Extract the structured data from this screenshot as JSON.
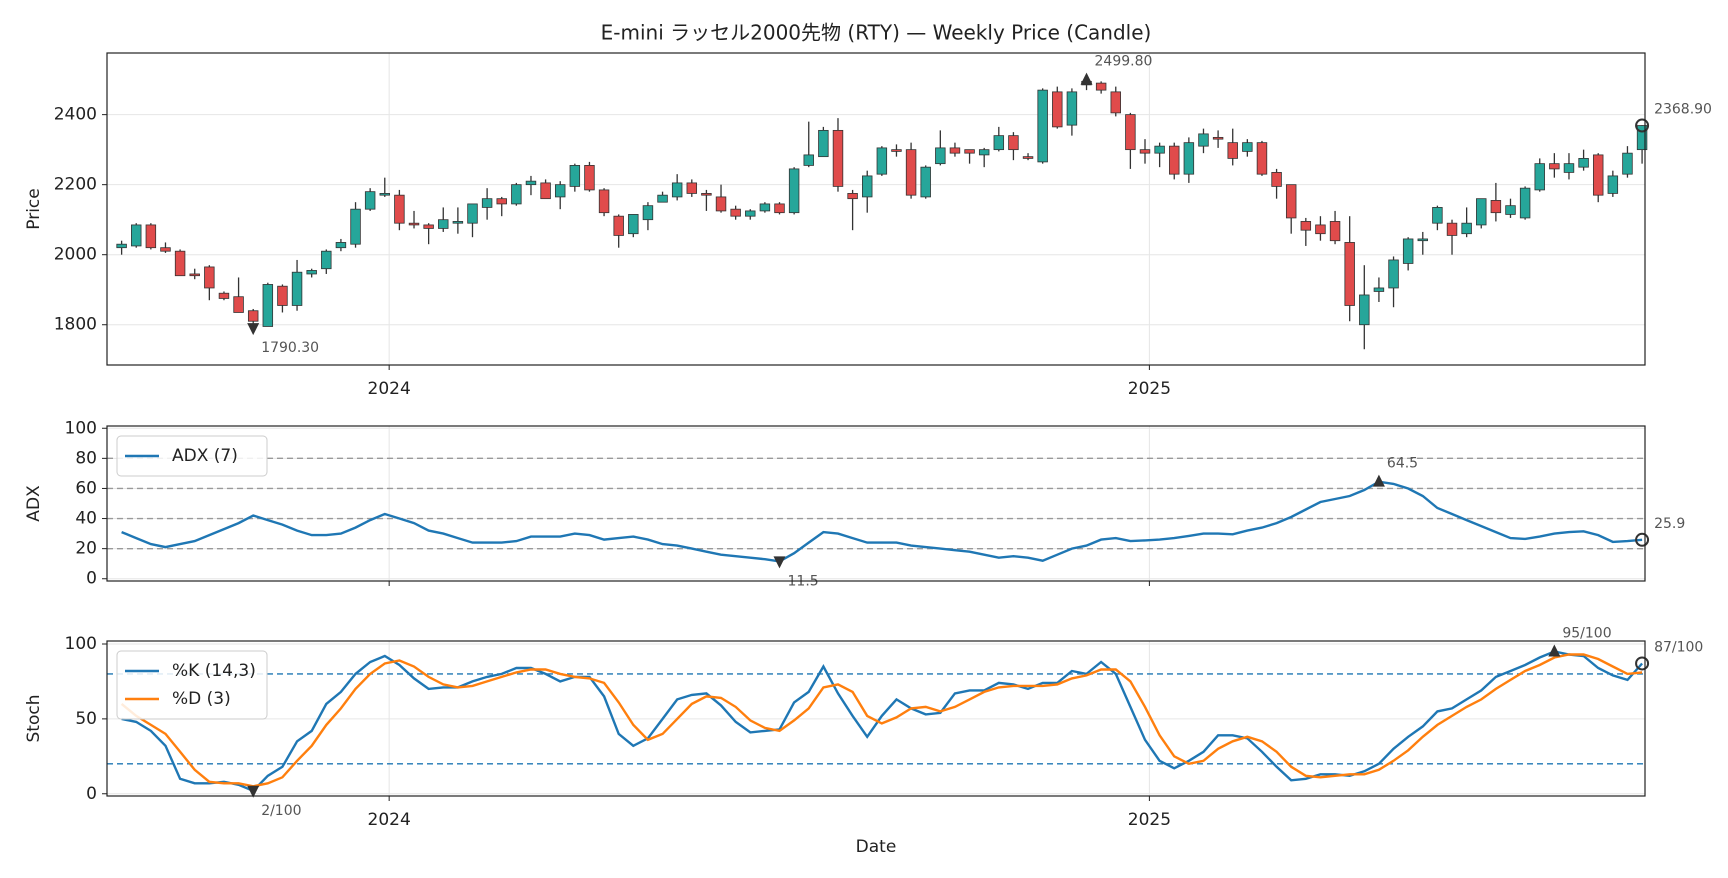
{
  "chart_data": [
    {
      "type": "candlestick",
      "title": "E-mini ラッセル2000先物 (RTY) — Weekly Price (Candle)",
      "ylabel": "Price",
      "up_color": "#26a69a",
      "down_color": "#e04b4b",
      "grid": true,
      "xlim": [
        -1,
        104.2
      ],
      "xticks": [
        {
          "value": 18.3,
          "label": "2024"
        },
        {
          "value": 70.3,
          "label": "2025"
        }
      ],
      "ylim": [
        1685,
        2576
      ],
      "yticks": [
        1800,
        2000,
        2200,
        2400
      ],
      "open": [
        2020,
        2025,
        2085,
        2020,
        2010,
        1945,
        1965,
        1890,
        1880,
        1840,
        1795,
        1910,
        1855,
        1945,
        1960,
        2020,
        2030,
        2130,
        2170,
        2170,
        2090,
        2085,
        2075,
        2090,
        2090,
        2135,
        2160,
        2145,
        2200,
        2205,
        2165,
        2195,
        2255,
        2185,
        2110,
        2060,
        2100,
        2150,
        2165,
        2205,
        2175,
        2165,
        2130,
        2110,
        2125,
        2145,
        2120,
        2255,
        2280,
        2355,
        2175,
        2165,
        2230,
        2300,
        2300,
        2165,
        2260,
        2305,
        2300,
        2285,
        2300,
        2340,
        2280,
        2265,
        2465,
        2370,
        2485,
        2490,
        2465,
        2400,
        2300,
        2290,
        2310,
        2230,
        2310,
        2335,
        2320,
        2295,
        2320,
        2235,
        2200,
        2095,
        2085,
        2095,
        2035,
        1800,
        1895,
        1905,
        1975,
        2040,
        2090,
        2090,
        2060,
        2085,
        2155,
        2115,
        2105,
        2185,
        2260,
        2235,
        2250,
        2285,
        2175,
        2230,
        2300
      ],
      "high": [
        2040,
        2090,
        2090,
        2035,
        2015,
        1960,
        1970,
        1895,
        1935,
        1845,
        1920,
        1915,
        1985,
        1960,
        2015,
        2045,
        2150,
        2190,
        2220,
        2185,
        2125,
        2090,
        2135,
        2135,
        2145,
        2190,
        2165,
        2205,
        2225,
        2215,
        2210,
        2260,
        2265,
        2190,
        2115,
        2115,
        2150,
        2180,
        2230,
        2215,
        2185,
        2200,
        2140,
        2130,
        2150,
        2150,
        2250,
        2380,
        2365,
        2390,
        2185,
        2240,
        2310,
        2315,
        2320,
        2255,
        2355,
        2320,
        2300,
        2305,
        2365,
        2350,
        2290,
        2475,
        2480,
        2475,
        2499.8,
        2495,
        2480,
        2405,
        2330,
        2320,
        2320,
        2335,
        2360,
        2355,
        2360,
        2330,
        2325,
        2245,
        2200,
        2105,
        2110,
        2125,
        2110,
        1970,
        1935,
        1995,
        2050,
        2065,
        2140,
        2100,
        2135,
        2160,
        2205,
        2160,
        2195,
        2275,
        2290,
        2290,
        2300,
        2290,
        2240,
        2310,
        2370
      ],
      "low": [
        2000,
        2020,
        2015,
        2005,
        1940,
        1930,
        1870,
        1870,
        1835,
        1790.3,
        1795,
        1835,
        1840,
        1935,
        1945,
        2010,
        2020,
        2125,
        2165,
        2070,
        2075,
        2030,
        2065,
        2060,
        2050,
        2100,
        2110,
        2140,
        2170,
        2160,
        2130,
        2180,
        2180,
        2110,
        2020,
        2050,
        2070,
        2150,
        2155,
        2165,
        2125,
        2120,
        2100,
        2100,
        2120,
        2115,
        2115,
        2250,
        2280,
        2180,
        2070,
        2120,
        2225,
        2280,
        2160,
        2160,
        2255,
        2280,
        2260,
        2250,
        2295,
        2270,
        2270,
        2260,
        2360,
        2340,
        2470,
        2460,
        2395,
        2245,
        2260,
        2250,
        2215,
        2205,
        2290,
        2305,
        2255,
        2280,
        2225,
        2160,
        2060,
        2025,
        2040,
        2030,
        1810,
        1730,
        1865,
        1850,
        1955,
        2000,
        2070,
        2000,
        2050,
        2075,
        2095,
        2105,
        2100,
        2180,
        2220,
        2215,
        2240,
        2150,
        2165,
        2220,
        2260
      ],
      "close": [
        2030,
        2085,
        2020,
        2010,
        1940,
        1940,
        1905,
        1875,
        1835,
        1810,
        1915,
        1855,
        1950,
        1955,
        2010,
        2035,
        2130,
        2180,
        2175,
        2090,
        2085,
        2075,
        2100,
        2095,
        2145,
        2160,
        2145,
        2200,
        2210,
        2160,
        2200,
        2255,
        2185,
        2120,
        2055,
        2115,
        2140,
        2170,
        2205,
        2175,
        2170,
        2125,
        2110,
        2125,
        2145,
        2120,
        2245,
        2285,
        2355,
        2195,
        2160,
        2225,
        2305,
        2295,
        2170,
        2250,
        2305,
        2290,
        2290,
        2300,
        2340,
        2300,
        2275,
        2470,
        2365,
        2465,
        2495,
        2470,
        2405,
        2300,
        2290,
        2310,
        2230,
        2320,
        2345,
        2330,
        2275,
        2320,
        2230,
        2195,
        2105,
        2070,
        2060,
        2040,
        1855,
        1885,
        1905,
        1985,
        2045,
        2045,
        2135,
        2055,
        2090,
        2160,
        2120,
        2140,
        2190,
        2260,
        2245,
        2260,
        2275,
        2170,
        2225,
        2290,
        2368.9
      ],
      "annotations": [
        {
          "x": 66,
          "value": 2499.8,
          "label": "2499.80",
          "marker": "up"
        },
        {
          "x": 9,
          "value": 1790.3,
          "label": "1790.30",
          "marker": "down"
        },
        {
          "x": 104,
          "value": 2368.9,
          "label": "2368.90",
          "marker": "circle"
        }
      ]
    },
    {
      "type": "line",
      "ylabel": "ADX",
      "grid": true,
      "legend": "upper left",
      "xlim": [
        -1,
        104.2
      ],
      "ylim": [
        -1.5,
        101.5
      ],
      "yticks": [
        0,
        20,
        40,
        60,
        80,
        100
      ],
      "levels": [
        20,
        40,
        60,
        80
      ],
      "level_color": "#999999",
      "series": [
        {
          "name": "ADX (7)",
          "color": "#1f77b4",
          "values": [
            31,
            27,
            23,
            21,
            23,
            25,
            29,
            33,
            37,
            42,
            39,
            36,
            32,
            29,
            29,
            30,
            34,
            39,
            43,
            40,
            37,
            32,
            30,
            27,
            24,
            24,
            24,
            25,
            28,
            28,
            28,
            30,
            29,
            26,
            27,
            28,
            26,
            23,
            22,
            20,
            18,
            16,
            15,
            14,
            13,
            11.5,
            17,
            24,
            31,
            30,
            27,
            24,
            24,
            24,
            22,
            21,
            20,
            19,
            18,
            16,
            14,
            15,
            14,
            12,
            16,
            20,
            22,
            26,
            27,
            25,
            25.5,
            26,
            27,
            28.5,
            30,
            30,
            29.5,
            32,
            34,
            37,
            41,
            46,
            51,
            53,
            55,
            59,
            64.5,
            63,
            60,
            55,
            47,
            43,
            39,
            35,
            31,
            27,
            26.5,
            28,
            30,
            31,
            31.5,
            29,
            24.5,
            25,
            25.9
          ]
        }
      ],
      "annotations": [
        {
          "x": 86,
          "value": 64.5,
          "label": "64.5",
          "marker": "up"
        },
        {
          "x": 45,
          "value": 11.5,
          "label": "11.5",
          "marker": "down"
        },
        {
          "x": 104,
          "value": 25.9,
          "label": "25.9",
          "marker": "circle"
        }
      ]
    },
    {
      "type": "line",
      "ylabel": "Stoch",
      "xlabel": "Date",
      "grid": true,
      "legend": "upper left",
      "xlim": [
        -1,
        104.2
      ],
      "xticks": [
        {
          "value": 18.3,
          "label": "2024"
        },
        {
          "value": 70.3,
          "label": "2025"
        }
      ],
      "ylim": [
        -1.5,
        102
      ],
      "yticks": [
        0,
        50,
        100
      ],
      "levels": [
        20,
        80
      ],
      "level_color": "#1f77b4",
      "series": [
        {
          "name": "%K (14,3)",
          "color": "#1f77b4",
          "values": [
            50,
            48,
            42,
            32,
            10,
            7,
            7,
            8,
            6,
            2,
            12,
            18,
            35,
            42,
            60,
            68,
            80,
            88,
            92,
            86,
            77,
            70,
            71,
            71,
            75,
            78,
            80,
            84,
            84,
            80,
            75,
            78,
            78,
            65,
            40,
            32,
            37,
            50,
            63,
            66,
            67,
            59,
            48,
            41,
            42,
            43,
            61,
            68,
            85,
            67,
            52,
            38,
            52,
            63,
            57,
            53,
            54,
            67,
            69,
            69,
            74,
            73,
            70,
            74,
            74,
            82,
            80,
            88,
            80,
            58,
            36,
            22,
            17,
            22,
            28,
            39,
            39,
            37,
            28,
            18,
            9,
            10,
            13,
            13,
            12,
            15,
            20,
            30,
            38,
            45,
            55,
            57,
            63,
            69,
            78,
            82,
            86,
            91,
            95,
            93,
            92,
            84,
            79,
            76,
            87
          ]
        },
        {
          "name": "%D (3)",
          "color": "#ff7f0e",
          "values": [
            60,
            52,
            46,
            40,
            28,
            16,
            8,
            7,
            7,
            5,
            7,
            11,
            22,
            32,
            46,
            57,
            70,
            80,
            87,
            89,
            85,
            78,
            73,
            71,
            72,
            75,
            78,
            81,
            83,
            83,
            80,
            78,
            77,
            74,
            61,
            46,
            36,
            40,
            50,
            60,
            65,
            64,
            58,
            49,
            44,
            42,
            49,
            57,
            71,
            73,
            68,
            52,
            47,
            51,
            57,
            58,
            55,
            58,
            63,
            68,
            71,
            72,
            72,
            72,
            73,
            77,
            79,
            83,
            83,
            75,
            58,
            39,
            25,
            20,
            22,
            30,
            35,
            38,
            35,
            28,
            18,
            12,
            11,
            12,
            13,
            13,
            16,
            22,
            29,
            38,
            46,
            52,
            58,
            63,
            70,
            76,
            82,
            86,
            91,
            93,
            93,
            90,
            85,
            80,
            81
          ]
        }
      ],
      "annotations": [
        {
          "x": 9,
          "value": 2,
          "label": "2/100",
          "marker": "down"
        },
        {
          "x": 98,
          "value": 95,
          "label": "95/100",
          "marker": "up"
        },
        {
          "x": 104,
          "value": 87,
          "label": "87/100",
          "marker": "circle"
        }
      ]
    }
  ]
}
